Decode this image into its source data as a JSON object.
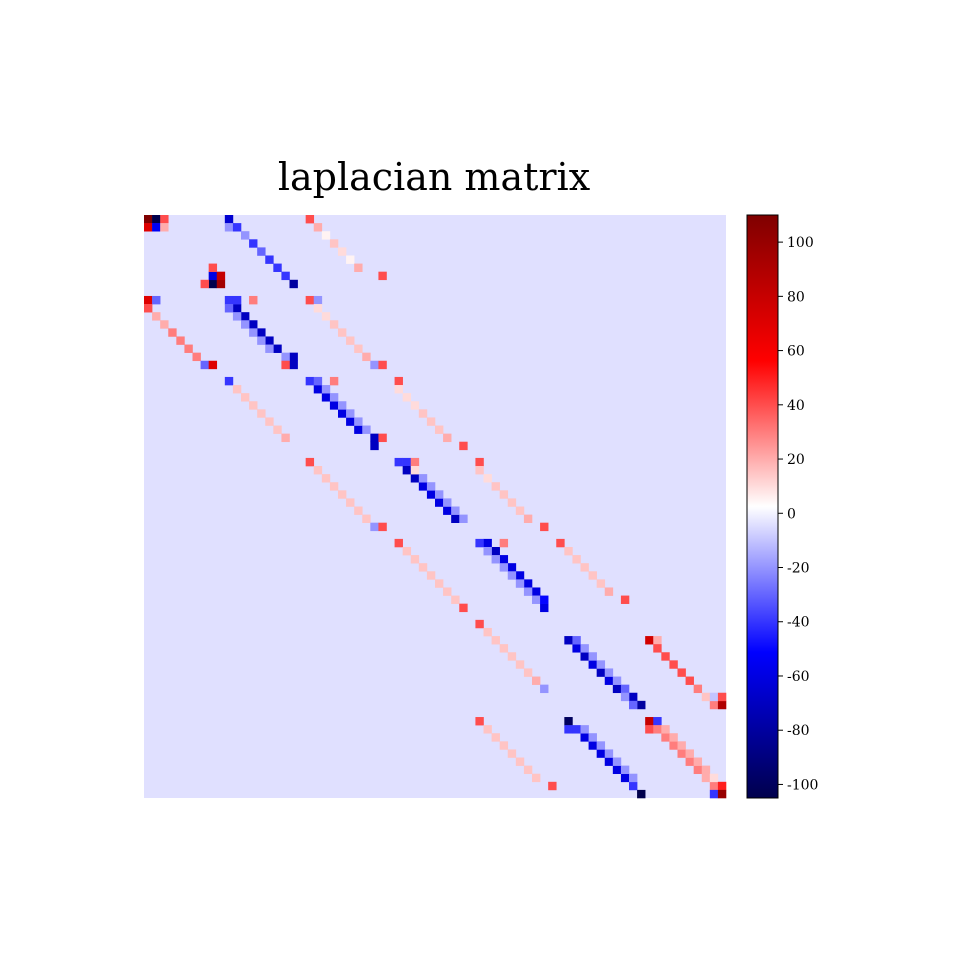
{
  "chart_data": {
    "type": "heatmap",
    "title": "laplacian matrix",
    "rows": 72,
    "cols": 72,
    "colormap": "seismic",
    "vmin": -105,
    "vmax": 110,
    "background_value": -4,
    "colorbar": {
      "ticks": [
        100,
        80,
        60,
        40,
        20,
        0,
        -20,
        -40,
        -60,
        -80,
        -100
      ],
      "tick_labels": [
        "100",
        "80",
        "60",
        "40",
        "20",
        "0",
        "-20",
        "-40",
        "-60",
        "-80",
        "-100"
      ]
    },
    "structure": "sparse banded pattern: negative main diagonal, positive near-diagonals, off-block bands",
    "entries": [
      [
        0,
        0,
        110
      ],
      [
        0,
        1,
        -105
      ],
      [
        0,
        2,
        40
      ],
      [
        1,
        0,
        70
      ],
      [
        1,
        1,
        -55
      ],
      [
        1,
        2,
        20
      ],
      [
        0,
        10,
        -65
      ],
      [
        1,
        10,
        -20
      ],
      [
        1,
        11,
        -40
      ],
      [
        2,
        12,
        -20
      ],
      [
        3,
        13,
        -40
      ],
      [
        4,
        14,
        -30
      ],
      [
        5,
        15,
        -40
      ],
      [
        6,
        16,
        -40
      ],
      [
        7,
        17,
        -40
      ],
      [
        8,
        18,
        -80
      ],
      [
        0,
        20,
        40
      ],
      [
        1,
        21,
        20
      ],
      [
        2,
        22,
        5
      ],
      [
        3,
        23,
        15
      ],
      [
        4,
        24,
        10
      ],
      [
        5,
        25,
        5
      ],
      [
        6,
        26,
        20
      ],
      [
        7,
        29,
        40
      ],
      [
        8,
        8,
        -105
      ],
      [
        8,
        9,
        95
      ],
      [
        7,
        8,
        -60
      ],
      [
        7,
        9,
        80
      ],
      [
        8,
        7,
        40
      ],
      [
        6,
        8,
        40
      ],
      [
        10,
        0,
        70
      ],
      [
        10,
        1,
        -30
      ],
      [
        11,
        0,
        40
      ],
      [
        12,
        1,
        20
      ],
      [
        13,
        2,
        20
      ],
      [
        14,
        3,
        30
      ],
      [
        15,
        4,
        30
      ],
      [
        16,
        5,
        30
      ],
      [
        17,
        6,
        30
      ],
      [
        18,
        7,
        -30
      ],
      [
        18,
        8,
        70
      ],
      [
        10,
        10,
        -40
      ],
      [
        11,
        11,
        -70
      ],
      [
        12,
        12,
        -70
      ],
      [
        13,
        13,
        -70
      ],
      [
        14,
        14,
        -70
      ],
      [
        15,
        15,
        -70
      ],
      [
        16,
        16,
        -70
      ],
      [
        17,
        18,
        -70
      ],
      [
        18,
        18,
        -70
      ],
      [
        10,
        11,
        -40
      ],
      [
        10,
        13,
        30
      ],
      [
        11,
        10,
        -30
      ],
      [
        12,
        11,
        -20
      ],
      [
        13,
        12,
        -20
      ],
      [
        14,
        13,
        -20
      ],
      [
        15,
        14,
        -20
      ],
      [
        16,
        15,
        -20
      ],
      [
        17,
        17,
        -20
      ],
      [
        10,
        20,
        40
      ],
      [
        10,
        21,
        -20
      ],
      [
        11,
        21,
        10
      ],
      [
        12,
        22,
        10
      ],
      [
        13,
        23,
        15
      ],
      [
        14,
        24,
        15
      ],
      [
        15,
        25,
        15
      ],
      [
        16,
        26,
        15
      ],
      [
        17,
        27,
        20
      ],
      [
        18,
        28,
        -20
      ],
      [
        18,
        29,
        40
      ],
      [
        20,
        10,
        -40
      ],
      [
        21,
        11,
        15
      ],
      [
        22,
        12,
        15
      ],
      [
        23,
        13,
        15
      ],
      [
        24,
        14,
        15
      ],
      [
        25,
        15,
        15
      ],
      [
        26,
        16,
        15
      ],
      [
        27,
        17,
        20
      ],
      [
        18,
        17,
        40
      ],
      [
        20,
        20,
        -40
      ],
      [
        21,
        21,
        -60
      ],
      [
        22,
        22,
        -60
      ],
      [
        23,
        23,
        -60
      ],
      [
        24,
        24,
        -60
      ],
      [
        25,
        25,
        -60
      ],
      [
        26,
        26,
        -60
      ],
      [
        27,
        28,
        -70
      ],
      [
        28,
        28,
        -70
      ],
      [
        20,
        21,
        -30
      ],
      [
        20,
        23,
        30
      ],
      [
        21,
        22,
        -20
      ],
      [
        22,
        23,
        -20
      ],
      [
        23,
        24,
        -20
      ],
      [
        24,
        25,
        -20
      ],
      [
        25,
        26,
        -20
      ],
      [
        26,
        27,
        -20
      ],
      [
        27,
        29,
        40
      ],
      [
        20,
        31,
        40
      ],
      [
        21,
        31,
        10
      ],
      [
        22,
        32,
        10
      ],
      [
        23,
        33,
        10
      ],
      [
        24,
        34,
        15
      ],
      [
        25,
        35,
        15
      ],
      [
        26,
        36,
        15
      ],
      [
        27,
        37,
        20
      ],
      [
        28,
        39,
        40
      ],
      [
        30,
        20,
        40
      ],
      [
        31,
        21,
        15
      ],
      [
        32,
        22,
        15
      ],
      [
        33,
        23,
        15
      ],
      [
        34,
        24,
        15
      ],
      [
        35,
        25,
        15
      ],
      [
        36,
        26,
        15
      ],
      [
        37,
        27,
        15
      ],
      [
        38,
        28,
        -20
      ],
      [
        38,
        29,
        40
      ],
      [
        30,
        31,
        -40
      ],
      [
        30,
        32,
        -40
      ],
      [
        31,
        32,
        -70
      ],
      [
        32,
        33,
        -70
      ],
      [
        33,
        34,
        -60
      ],
      [
        34,
        35,
        -60
      ],
      [
        35,
        36,
        -60
      ],
      [
        36,
        37,
        -60
      ],
      [
        37,
        38,
        -70
      ],
      [
        30,
        33,
        30
      ],
      [
        31,
        33,
        10
      ],
      [
        32,
        34,
        -20
      ],
      [
        33,
        35,
        -20
      ],
      [
        34,
        36,
        -20
      ],
      [
        35,
        37,
        -20
      ],
      [
        36,
        38,
        -20
      ],
      [
        37,
        39,
        -20
      ],
      [
        30,
        41,
        40
      ],
      [
        31,
        41,
        15
      ],
      [
        32,
        42,
        10
      ],
      [
        33,
        43,
        15
      ],
      [
        34,
        44,
        15
      ],
      [
        35,
        45,
        15
      ],
      [
        36,
        46,
        15
      ],
      [
        37,
        47,
        20
      ],
      [
        38,
        49,
        40
      ],
      [
        40,
        31,
        40
      ],
      [
        41,
        32,
        15
      ],
      [
        42,
        33,
        15
      ],
      [
        43,
        34,
        15
      ],
      [
        44,
        35,
        15
      ],
      [
        45,
        36,
        15
      ],
      [
        46,
        37,
        15
      ],
      [
        47,
        38,
        15
      ],
      [
        48,
        39,
        40
      ],
      [
        40,
        42,
        -60
      ],
      [
        41,
        43,
        -70
      ],
      [
        42,
        44,
        -60
      ],
      [
        43,
        45,
        -60
      ],
      [
        44,
        46,
        -60
      ],
      [
        45,
        47,
        -60
      ],
      [
        46,
        48,
        -60
      ],
      [
        47,
        48,
        -20
      ],
      [
        48,
        49,
        -60
      ],
      [
        40,
        41,
        -40
      ],
      [
        40,
        44,
        30
      ],
      [
        41,
        42,
        -20
      ],
      [
        42,
        43,
        -20
      ],
      [
        43,
        44,
        -20
      ],
      [
        44,
        45,
        -20
      ],
      [
        45,
        46,
        -20
      ],
      [
        46,
        47,
        -20
      ],
      [
        47,
        49,
        -50
      ],
      [
        40,
        51,
        40
      ],
      [
        41,
        52,
        15
      ],
      [
        42,
        53,
        15
      ],
      [
        43,
        54,
        15
      ],
      [
        44,
        55,
        15
      ],
      [
        45,
        56,
        15
      ],
      [
        46,
        57,
        20
      ],
      [
        47,
        59,
        40
      ],
      [
        52,
        62,
        75
      ],
      [
        52,
        63,
        20
      ],
      [
        53,
        63,
        40
      ],
      [
        54,
        64,
        40
      ],
      [
        55,
        65,
        40
      ],
      [
        56,
        66,
        40
      ],
      [
        57,
        67,
        40
      ],
      [
        58,
        68,
        30
      ],
      [
        59,
        69,
        15
      ],
      [
        60,
        70,
        30
      ],
      [
        50,
        41,
        40
      ],
      [
        51,
        42,
        15
      ],
      [
        52,
        43,
        15
      ],
      [
        53,
        44,
        15
      ],
      [
        54,
        45,
        15
      ],
      [
        55,
        46,
        15
      ],
      [
        56,
        47,
        15
      ],
      [
        57,
        48,
        20
      ],
      [
        58,
        49,
        -20
      ],
      [
        52,
        52,
        -70
      ],
      [
        53,
        53,
        -60
      ],
      [
        54,
        54,
        -70
      ],
      [
        55,
        55,
        -60
      ],
      [
        56,
        56,
        -70
      ],
      [
        57,
        57,
        -60
      ],
      [
        58,
        58,
        -70
      ],
      [
        59,
        60,
        -70
      ],
      [
        60,
        61,
        -80
      ],
      [
        52,
        53,
        -30
      ],
      [
        53,
        54,
        -20
      ],
      [
        54,
        55,
        -20
      ],
      [
        55,
        56,
        -20
      ],
      [
        56,
        57,
        -20
      ],
      [
        57,
        58,
        -20
      ],
      [
        58,
        59,
        -30
      ],
      [
        59,
        59,
        -20
      ],
      [
        60,
        60,
        -30
      ],
      [
        60,
        71,
        90
      ],
      [
        59,
        70,
        -10
      ],
      [
        59,
        71,
        40
      ],
      [
        62,
        41,
        40
      ],
      [
        63,
        42,
        15
      ],
      [
        64,
        43,
        15
      ],
      [
        65,
        44,
        15
      ],
      [
        66,
        45,
        15
      ],
      [
        67,
        46,
        15
      ],
      [
        68,
        47,
        15
      ],
      [
        69,
        48,
        15
      ],
      [
        70,
        50,
        40
      ],
      [
        62,
        52,
        -100
      ],
      [
        63,
        52,
        -40
      ],
      [
        63,
        53,
        -40
      ],
      [
        64,
        54,
        -60
      ],
      [
        65,
        55,
        -60
      ],
      [
        66,
        56,
        -60
      ],
      [
        67,
        57,
        -60
      ],
      [
        68,
        58,
        -60
      ],
      [
        69,
        59,
        -60
      ],
      [
        70,
        60,
        -40
      ],
      [
        71,
        61,
        -105
      ],
      [
        63,
        54,
        -20
      ],
      [
        64,
        55,
        -20
      ],
      [
        65,
        56,
        -20
      ],
      [
        66,
        57,
        -20
      ],
      [
        67,
        58,
        -20
      ],
      [
        68,
        59,
        -20
      ],
      [
        69,
        60,
        -20
      ],
      [
        62,
        62,
        80
      ],
      [
        62,
        63,
        -40
      ],
      [
        63,
        62,
        40
      ],
      [
        63,
        63,
        30
      ],
      [
        64,
        64,
        30
      ],
      [
        65,
        65,
        30
      ],
      [
        66,
        66,
        30
      ],
      [
        67,
        67,
        30
      ],
      [
        68,
        68,
        30
      ],
      [
        69,
        69,
        20
      ],
      [
        70,
        70,
        30
      ],
      [
        63,
        64,
        20
      ],
      [
        64,
        65,
        20
      ],
      [
        65,
        66,
        20
      ],
      [
        66,
        67,
        20
      ],
      [
        67,
        68,
        20
      ],
      [
        68,
        69,
        20
      ],
      [
        69,
        70,
        10
      ],
      [
        70,
        71,
        50
      ],
      [
        71,
        70,
        -40
      ],
      [
        71,
        71,
        100
      ]
    ]
  }
}
